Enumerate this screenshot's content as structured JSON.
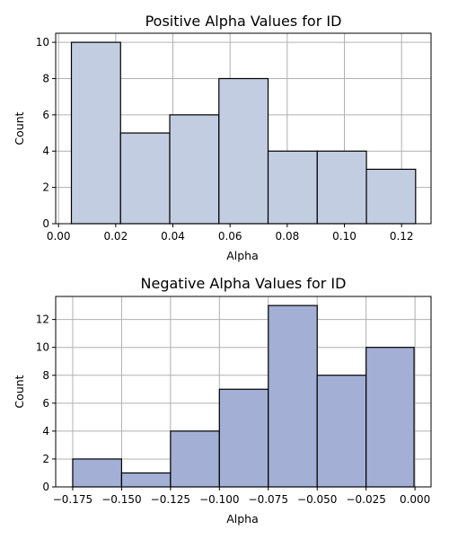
{
  "chart_data": [
    {
      "type": "bar",
      "title": "Positive Alpha Values for ID",
      "xlabel": "Alpha",
      "ylabel": "Count",
      "bin_edges": [
        0.0045,
        0.0217,
        0.0389,
        0.0561,
        0.0733,
        0.0905,
        0.1077,
        0.1249
      ],
      "values": [
        10,
        5,
        6,
        8,
        4,
        4,
        3
      ],
      "xlim": [
        -0.001,
        0.1303
      ],
      "ylim": [
        0,
        10.5
      ],
      "xticks": [
        0.0,
        0.02,
        0.04,
        0.06,
        0.08,
        0.1,
        0.12
      ],
      "xtick_labels": [
        "0.00",
        "0.02",
        "0.04",
        "0.06",
        "0.08",
        "0.10",
        "0.12"
      ],
      "yticks": [
        0,
        2,
        4,
        6,
        8,
        10
      ],
      "ytick_labels": [
        "0",
        "2",
        "4",
        "6",
        "8",
        "10"
      ],
      "grid": true,
      "bar_color": "#c3cde2",
      "edge_color": "#000000"
    },
    {
      "type": "bar",
      "title": "Negative Alpha Values for ID",
      "xlabel": "Alpha",
      "ylabel": "Count",
      "bin_edges": [
        -0.175,
        -0.15,
        -0.125,
        -0.1,
        -0.075,
        -0.05,
        -0.025,
        -0.0005
      ],
      "values": [
        2,
        1,
        4,
        7,
        13,
        8,
        10
      ],
      "xlim": [
        -0.1837,
        0.0082
      ],
      "ylim": [
        0,
        13.65
      ],
      "xticks": [
        -0.175,
        -0.15,
        -0.125,
        -0.1,
        -0.075,
        -0.05,
        -0.025,
        0.0
      ],
      "xtick_labels": [
        "−0.175",
        "−0.150",
        "−0.125",
        "−0.100",
        "−0.075",
        "−0.050",
        "−0.025",
        "0.000"
      ],
      "yticks": [
        0,
        2,
        4,
        6,
        8,
        10,
        12
      ],
      "ytick_labels": [
        "0",
        "2",
        "4",
        "6",
        "8",
        "10",
        "12"
      ],
      "grid": true,
      "bar_color": "#a3afd5",
      "edge_color": "#000000"
    }
  ]
}
